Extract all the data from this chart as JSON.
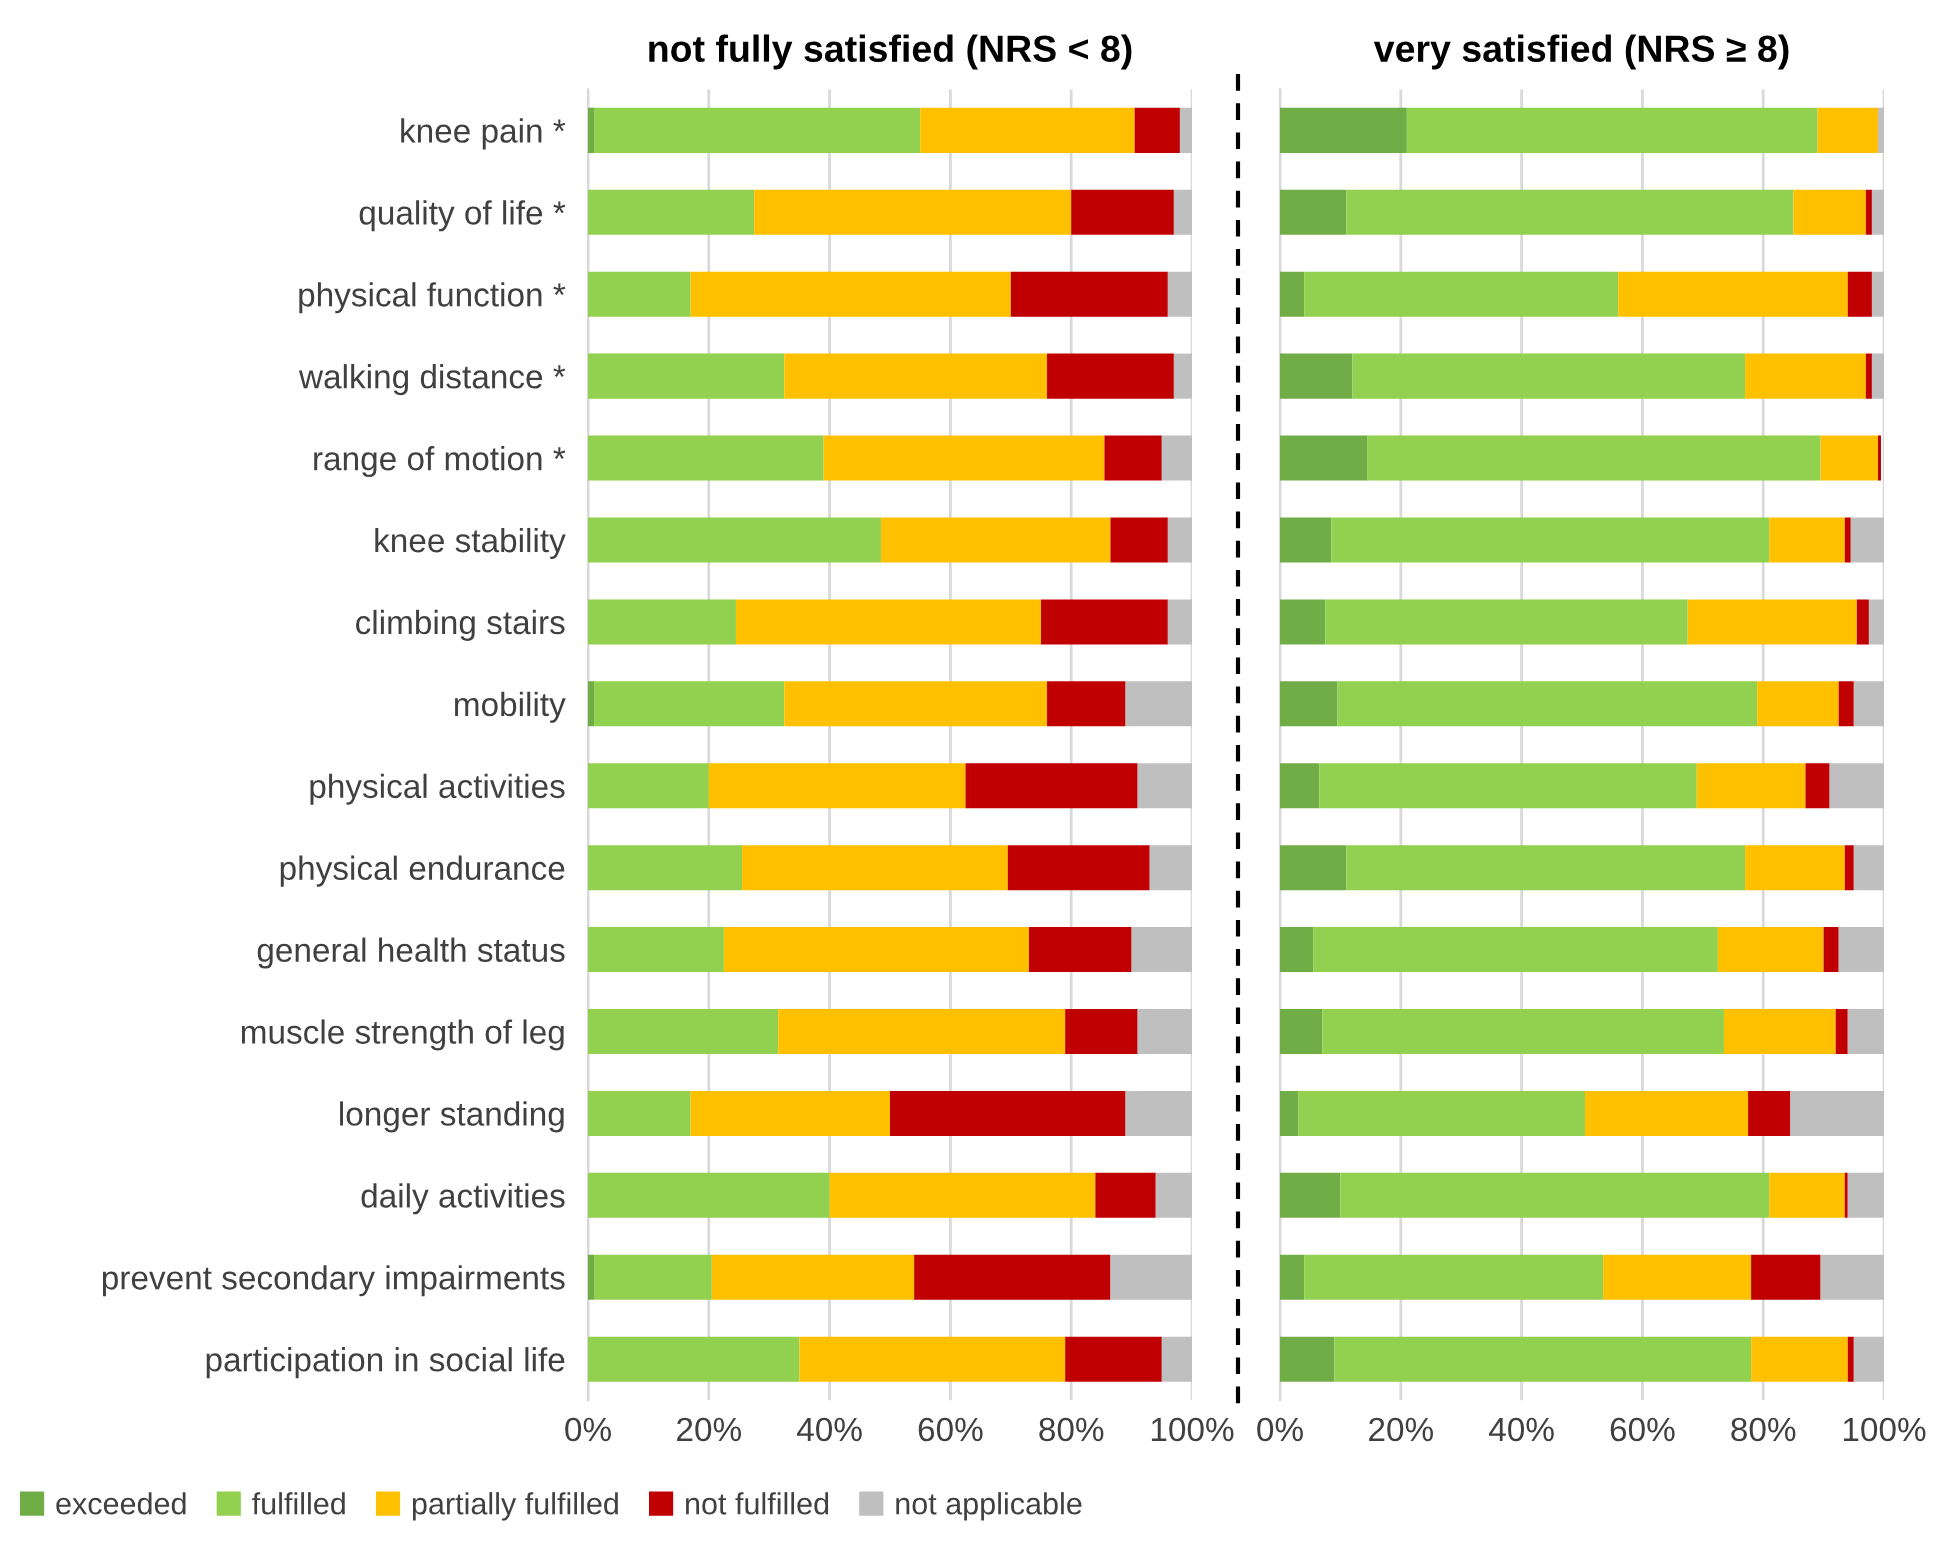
{
  "chart_data": [
    {
      "type": "bar",
      "orientation": "horizontal",
      "stacked": true,
      "title": "not fully satisfied (NRS < 8)",
      "legend": "bottom left",
      "grid": "x",
      "categories": [
        "knee pain *",
        "quality of life *",
        "physical function *",
        "walking distance *",
        "range of motion *",
        "knee stability",
        "climbing stairs",
        "mobility",
        "physical activities",
        "physical endurance",
        "general health status",
        "muscle strength of leg",
        "longer standing",
        "daily activities",
        "prevent secondary impairments",
        "participation in social life"
      ],
      "xlim": [
        0,
        100
      ],
      "xticks": [
        {
          "value": 0,
          "label": "0%"
        },
        {
          "value": 20,
          "label": "20%"
        },
        {
          "value": 40,
          "label": "40%"
        },
        {
          "value": 60,
          "label": "60%"
        },
        {
          "value": 80,
          "label": "80%"
        },
        {
          "value": 100,
          "label": "100%"
        }
      ],
      "series": [
        {
          "name": "exceeded",
          "color": "#70ad47",
          "values": [
            1,
            0,
            0,
            0,
            0,
            0,
            0,
            1,
            0,
            0,
            0,
            0,
            0,
            0,
            1,
            0
          ]
        },
        {
          "name": "fulfilled",
          "color": "#92d050",
          "values": [
            54,
            27.5,
            17,
            32.5,
            39,
            48.5,
            24.5,
            31.5,
            20,
            25.5,
            22.5,
            31.5,
            17,
            40,
            19.5,
            35
          ]
        },
        {
          "name": "partially fulfilled",
          "color": "#ffc000",
          "values": [
            35.5,
            52.5,
            53,
            43.5,
            46.5,
            38,
            50.5,
            43.5,
            42.5,
            44,
            50.5,
            47.5,
            33,
            44,
            33.5,
            44
          ]
        },
        {
          "name": "not fulfilled",
          "color": "#c00000",
          "values": [
            7.5,
            17,
            26,
            21,
            9.5,
            9.5,
            21,
            13,
            28.5,
            23.5,
            17,
            12,
            39,
            10,
            32.5,
            16
          ]
        },
        {
          "name": "not applicable",
          "color": "#bfbfbf",
          "values": [
            2,
            3,
            4,
            3,
            5,
            4,
            4,
            11,
            9,
            7,
            10,
            9,
            11,
            6,
            13.5,
            5
          ]
        }
      ]
    },
    {
      "type": "bar",
      "orientation": "horizontal",
      "stacked": true,
      "title": "very satisfied (NRS ≥ 8)",
      "grid": "x",
      "tick_labels": "x",
      "categories": [
        null,
        null,
        null,
        null,
        null,
        null,
        null,
        null,
        null,
        null,
        null,
        null,
        null,
        null,
        null,
        null
      ],
      "xlim": [
        0,
        100
      ],
      "xticks": [
        {
          "value": 0,
          "label": "0%"
        },
        {
          "value": 20,
          "label": "20%"
        },
        {
          "value": 40,
          "label": "40%"
        },
        {
          "value": 60,
          "label": "60%"
        },
        {
          "value": 80,
          "label": "80%"
        },
        {
          "value": 100,
          "label": "100%"
        }
      ],
      "series": [
        {
          "color": "#70ad47",
          "values": [
            21,
            11,
            4,
            12,
            14.5,
            8.5,
            7.5,
            9.5,
            6.5,
            11,
            5.5,
            7,
            3,
            10,
            4,
            9
          ]
        },
        {
          "color": "#92d050",
          "values": [
            68,
            74,
            52,
            65,
            75,
            72.5,
            60,
            69.5,
            62.5,
            66,
            67,
            66.5,
            47.5,
            71,
            49.5,
            69
          ]
        },
        {
          "color": "#ffc000",
          "values": [
            10,
            12,
            38,
            20,
            9.5,
            12.5,
            28,
            13.5,
            18,
            16.5,
            17.5,
            18.5,
            27,
            12.5,
            24.5,
            16
          ]
        },
        {
          "color": "#c00000",
          "values": [
            0,
            1,
            4,
            1,
            0.5,
            1,
            2,
            2.5,
            4,
            1.5,
            2.5,
            2,
            7,
            0.5,
            11.5,
            1
          ]
        },
        {
          "color": "#bfbfbf",
          "values": [
            1,
            2,
            2,
            2,
            null,
            5.5,
            2.5,
            5,
            9,
            5,
            7.5,
            6,
            15.5,
            6,
            10.5,
            5
          ]
        }
      ]
    }
  ]
}
